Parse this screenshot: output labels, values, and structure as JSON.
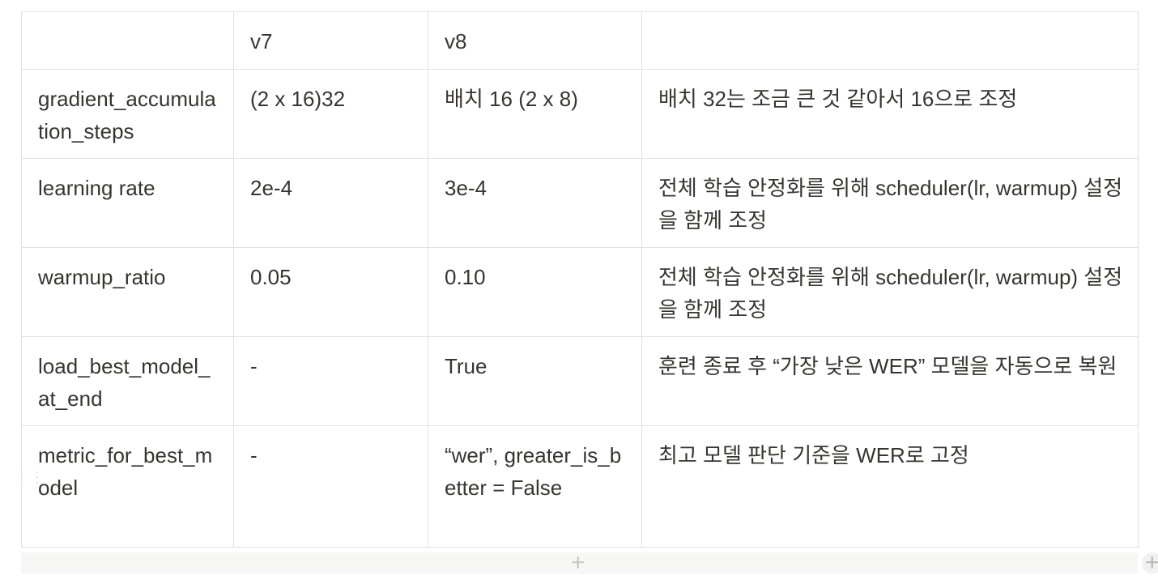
{
  "table": {
    "header": [
      "",
      "v7",
      "v8",
      ""
    ],
    "rows": [
      [
        "gradient_accumulation_steps",
        "(2 x 16)32",
        "배치 16 (2 x 8)",
        "배치 32는 조금 큰 것 같아서 16으로 조정"
      ],
      [
        "learning rate",
        "2e-4",
        "3e-4",
        "전체 학습 안정화를 위해 scheduler(lr, warmup) 설정을 함께 조정"
      ],
      [
        "warmup_ratio",
        "0.05",
        "0.10",
        "전체 학습 안정화를 위해 scheduler(lr, warmup) 설정을 함께 조정"
      ],
      [
        "load_best_model_at_end",
        "-",
        "True",
        "훈련 종료 후 “가장 낮은 WER” 모델을 자동으로 복원"
      ],
      [
        "metric_for_best_model",
        "-",
        "“wer”, greater_is_better = False",
        "최고 모델 판단 기준을 WER로 고정"
      ]
    ]
  },
  "controls": {
    "add_row_icon": "plus-icon",
    "add_column_icon": "plus-icon",
    "drag_handle_icon": "drag-handle-icon",
    "plus_glyph": "+",
    "drag_glyph": "⋮⋮"
  }
}
